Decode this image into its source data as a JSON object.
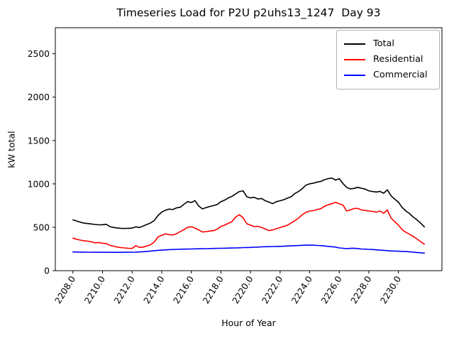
{
  "window": {
    "title": "Timeseries Load for P2U p2uhs13_1247  Day 93"
  },
  "chart_data": {
    "type": "line",
    "title": "Timeseries Load for P2U p2uhs13_1247  Day 93",
    "xlabel": "Hour of Year",
    "ylabel": "kW total",
    "xlim": [
      2206.81,
      2232.94
    ],
    "ylim": [
      0,
      2800
    ],
    "grid": false,
    "legend_position": "upper right",
    "x_start": 2208.0,
    "x_step": 0.25,
    "xticks": {
      "values": [
        2208,
        2210,
        2212,
        2214,
        2216,
        2218,
        2220,
        2222,
        2224,
        2226,
        2228,
        2230
      ],
      "labels": [
        "2208.0",
        "2210.0",
        "2212.0",
        "2214.0",
        "2216.0",
        "2218.0",
        "2220.0",
        "2222.0",
        "2224.0",
        "2226.0",
        "2228.0",
        "2230.0"
      ]
    },
    "yticks": {
      "values": [
        0,
        500,
        1000,
        1500,
        2000,
        2500
      ],
      "labels": [
        "0",
        "500",
        "1000",
        "1500",
        "2000",
        "2500"
      ]
    },
    "series": [
      {
        "name": "Total",
        "color": "#000000",
        "values": [
          585,
          572,
          558,
          548,
          543,
          538,
          532,
          528,
          530,
          535,
          508,
          498,
          492,
          488,
          486,
          488,
          490,
          505,
          497,
          515,
          532,
          550,
          578,
          635,
          675,
          697,
          710,
          704,
          724,
          730,
          765,
          797,
          785,
          808,
          745,
          712,
          726,
          740,
          750,
          762,
          795,
          812,
          838,
          856,
          885,
          912,
          920,
          852,
          838,
          846,
          826,
          832,
          806,
          790,
          772,
          796,
          806,
          818,
          836,
          852,
          890,
          912,
          946,
          986,
          1001,
          1008,
          1021,
          1028,
          1048,
          1060,
          1068,
          1044,
          1060,
          1004,
          960,
          942,
          948,
          960,
          950,
          940,
          920,
          912,
          906,
          914,
          892,
          932,
          862,
          824,
          789,
          728,
          688,
          658,
          618,
          585,
          548,
          505
        ]
      },
      {
        "name": "Residential",
        "color": "#ff0000",
        "values": [
          375,
          362,
          352,
          345,
          340,
          332,
          320,
          325,
          316,
          312,
          292,
          282,
          272,
          266,
          262,
          258,
          256,
          288,
          268,
          272,
          285,
          300,
          330,
          390,
          408,
          425,
          415,
          412,
          425,
          450,
          472,
          500,
          505,
          490,
          470,
          445,
          450,
          456,
          462,
          478,
          510,
          525,
          545,
          565,
          618,
          645,
          610,
          540,
          525,
          508,
          512,
          498,
          480,
          462,
          470,
          483,
          497,
          510,
          525,
          550,
          576,
          607,
          645,
          672,
          688,
          692,
          705,
          714,
          742,
          760,
          772,
          788,
          770,
          756,
          688,
          700,
          716,
          718,
          700,
          694,
          688,
          683,
          675,
          688,
          662,
          700,
          607,
          566,
          525,
          472,
          443,
          420,
          395,
          365,
          335,
          305
        ]
      },
      {
        "name": "Commercial",
        "color": "#0000ff",
        "values": [
          215,
          215,
          214,
          214,
          213,
          213,
          212,
          212,
          212,
          211,
          211,
          211,
          211,
          211,
          212,
          212,
          213,
          214,
          216,
          219,
          222,
          226,
          230,
          234,
          237,
          240,
          242,
          244,
          246,
          247,
          248,
          249,
          250,
          251,
          252,
          253,
          254,
          255,
          256,
          257,
          258,
          259,
          260,
          261,
          262,
          264,
          266,
          267,
          268,
          270,
          272,
          274,
          276,
          277,
          278,
          279,
          280,
          282,
          284,
          286,
          288,
          290,
          292,
          294,
          295,
          294,
          291,
          289,
          285,
          280,
          276,
          272,
          262,
          258,
          255,
          257,
          259,
          255,
          250,
          248,
          246,
          244,
          240,
          237,
          234,
          231,
          228,
          226,
          224,
          222,
          220,
          218,
          214,
          210,
          206,
          202
        ]
      }
    ],
    "legend": [
      "Total",
      "Residential",
      "Commercial"
    ]
  }
}
